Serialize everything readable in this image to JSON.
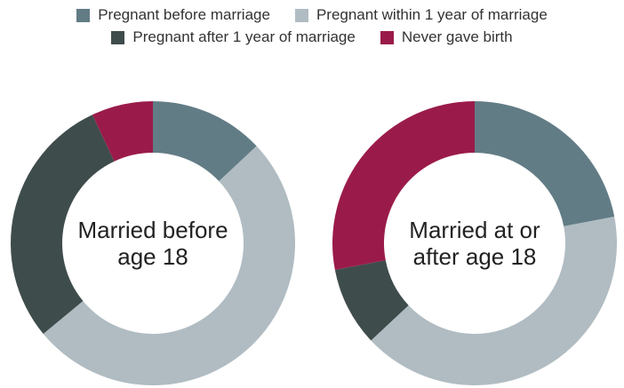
{
  "colors": {
    "pregnant_before": "#627c86",
    "pregnant_within_1yr": "#b0bcc2",
    "pregnant_after_1yr": "#3f4c4c",
    "never_gave_birth": "#9a1b4a"
  },
  "legend": {
    "row1": [
      {
        "label": "Pregnant before marriage",
        "color_key": "pregnant_before"
      },
      {
        "label": "Pregnant within 1 year of marriage",
        "color_key": "pregnant_within_1yr"
      }
    ],
    "row2": [
      {
        "label": "Pregnant after 1 year of marriage",
        "color_key": "pregnant_after_1yr"
      },
      {
        "label": "Never gave birth",
        "color_key": "never_gave_birth"
      }
    ]
  },
  "chart_data": [
    {
      "type": "pie",
      "donut": true,
      "center_label": [
        "Married before",
        "age 18"
      ],
      "categories": [
        "Pregnant before marriage",
        "Pregnant within 1 year of marriage",
        "Pregnant after 1 year of marriage",
        "Never gave birth"
      ],
      "values": [
        13,
        51,
        29,
        7
      ],
      "unit": "%"
    },
    {
      "type": "pie",
      "donut": true,
      "center_label": [
        "Married at or",
        "after age 18"
      ],
      "categories": [
        "Pregnant before marriage",
        "Pregnant within 1 year of marriage",
        "Pregnant after 1 year of marriage",
        "Never gave birth"
      ],
      "values": [
        22,
        41,
        9,
        28
      ],
      "unit": "%"
    }
  ]
}
